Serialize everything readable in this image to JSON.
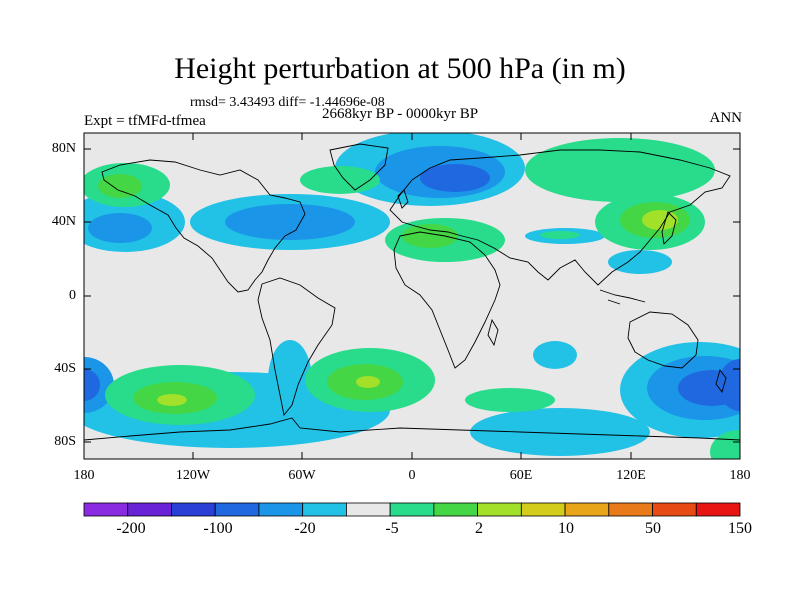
{
  "title": "Height perturbation at 500 hPa (in m)",
  "stats": "rmsd= 3.43493 diff= -1.44696e-08",
  "period": "2668kyr BP - 0000kyr BP",
  "experiment": "Expt = tfMFd-tfmea",
  "season": "ANN",
  "lat_labels": [
    "80N",
    "40N",
    "0",
    "40S",
    "80S"
  ],
  "lon_labels": [
    "180",
    "120W",
    "60W",
    "0",
    "60E",
    "120E",
    "180"
  ],
  "colorbar": {
    "colors": [
      "#8a2be2",
      "#6a22d6",
      "#2a3fd6",
      "#1f68e0",
      "#1a95e8",
      "#22c1e6",
      "#e8e8e8",
      "#28dc8c",
      "#44d644",
      "#a2e02a",
      "#d4cc1a",
      "#e8a51a",
      "#e87a1a",
      "#e84a14",
      "#e81414"
    ],
    "labels": [
      "-200",
      "-100",
      "-20",
      "-5",
      "2",
      "10",
      "50",
      "150"
    ]
  },
  "colors": {
    "background": "#e8e8e8",
    "coast": "#000000"
  }
}
